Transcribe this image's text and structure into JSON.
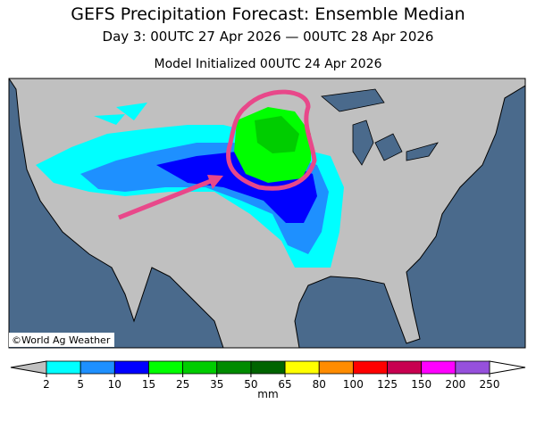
{
  "header": {
    "title": "GEFS Precipitation Forecast: Ensemble Median",
    "subtitle": "Day 3: 00UTC 27 Apr 2026 — 00UTC 28 Apr 2026",
    "initialized": "Model Initialized 00UTC 24 Apr 2026"
  },
  "map": {
    "credit": "©World Ag Weather"
  },
  "colorbar": {
    "levels": [
      2,
      5,
      10,
      15,
      25,
      35,
      50,
      65,
      80,
      100,
      125,
      150,
      200,
      250
    ],
    "colors": [
      "#00ffff",
      "#1e90ff",
      "#0000ff",
      "#00ff00",
      "#00cd00",
      "#008b00",
      "#006400",
      "#ffff00",
      "#ff8c00",
      "#ff0000",
      "#c80050",
      "#ff00ff",
      "#9650dc"
    ],
    "under_color": "#c0c0c0",
    "over_color": "#ffffff",
    "unit": "mm"
  }
}
